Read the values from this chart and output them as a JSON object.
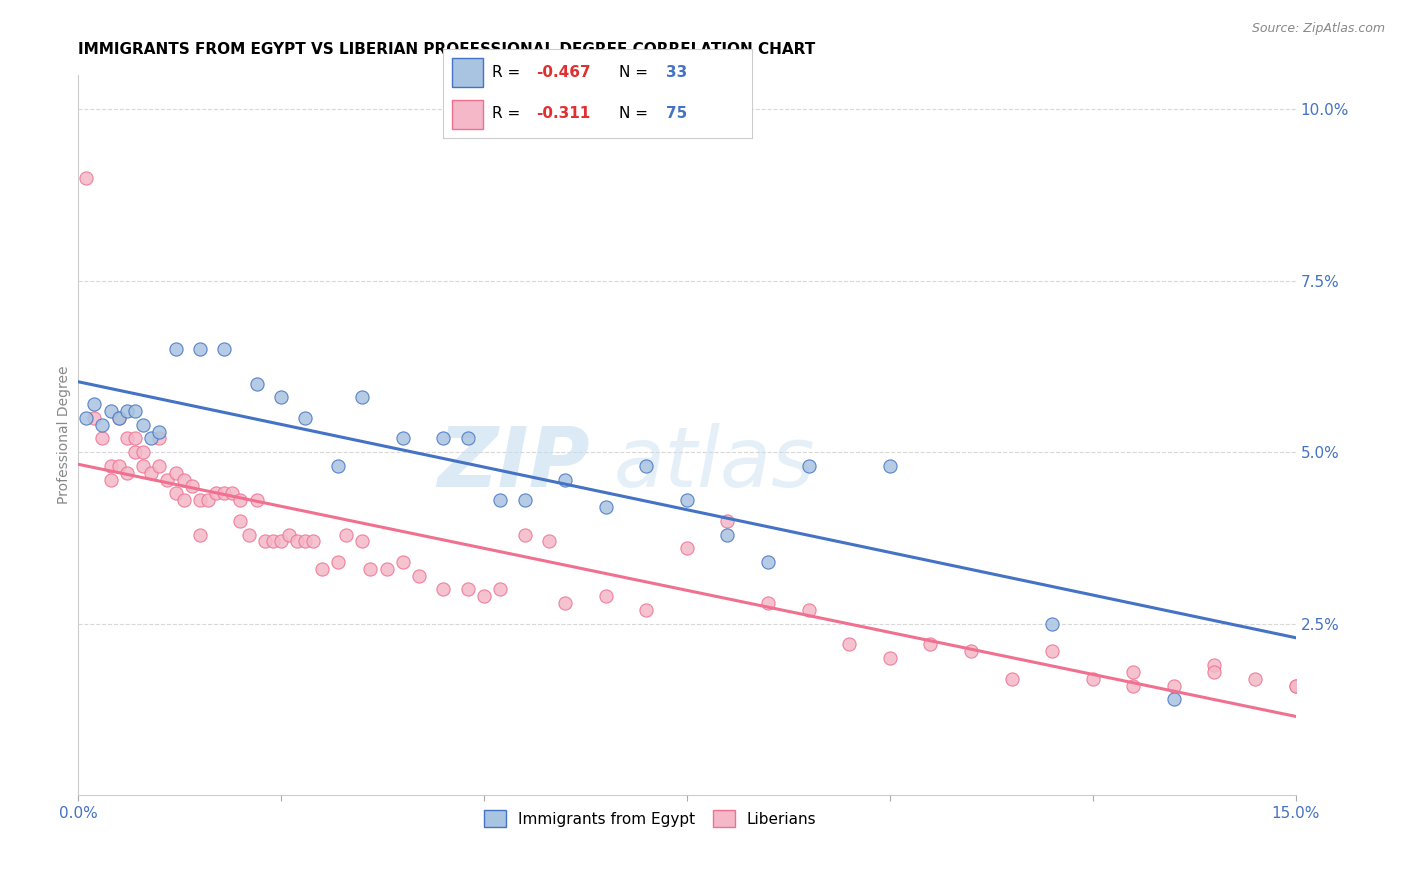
{
  "title": "IMMIGRANTS FROM EGYPT VS LIBERIAN PROFESSIONAL DEGREE CORRELATION CHART",
  "source": "Source: ZipAtlas.com",
  "ylabel": "Professional Degree",
  "x_min": 0.0,
  "x_max": 0.15,
  "y_min": 0.0,
  "y_max": 0.105,
  "x_ticks_labeled": [
    0.0,
    0.15
  ],
  "x_tick_labels_labeled": [
    "0.0%",
    "15.0%"
  ],
  "x_ticks_minor": [
    0.025,
    0.05,
    0.075,
    0.1,
    0.125
  ],
  "y_ticks_right": [
    0.025,
    0.05,
    0.075,
    0.1
  ],
  "y_tick_labels_right": [
    "2.5%",
    "5.0%",
    "7.5%",
    "10.0%"
  ],
  "legend_label_egypt": "Immigrants from Egypt",
  "legend_label_liberia": "Liberians",
  "r_egypt": -0.467,
  "n_egypt": 33,
  "r_liberia": -0.311,
  "n_liberia": 75,
  "color_egypt": "#a8c4e0",
  "color_liberia": "#f4b8c8",
  "color_egypt_line": "#4472c4",
  "color_liberia_line": "#f07090",
  "color_r": "#e03030",
  "color_n": "#4472c4",
  "watermark_zip": "ZIP",
  "watermark_atlas": "atlas",
  "egypt_x": [
    0.001,
    0.002,
    0.003,
    0.004,
    0.005,
    0.006,
    0.007,
    0.008,
    0.009,
    0.01,
    0.012,
    0.015,
    0.018,
    0.022,
    0.025,
    0.028,
    0.032,
    0.035,
    0.04,
    0.045,
    0.048,
    0.052,
    0.055,
    0.06,
    0.065,
    0.07,
    0.075,
    0.08,
    0.085,
    0.09,
    0.1,
    0.12,
    0.135
  ],
  "egypt_y": [
    0.055,
    0.057,
    0.054,
    0.056,
    0.055,
    0.056,
    0.056,
    0.054,
    0.052,
    0.053,
    0.065,
    0.065,
    0.065,
    0.06,
    0.058,
    0.055,
    0.048,
    0.058,
    0.052,
    0.052,
    0.052,
    0.043,
    0.043,
    0.046,
    0.042,
    0.048,
    0.043,
    0.038,
    0.034,
    0.048,
    0.048,
    0.025,
    0.014
  ],
  "liberia_x": [
    0.001,
    0.002,
    0.003,
    0.004,
    0.004,
    0.005,
    0.005,
    0.006,
    0.006,
    0.007,
    0.007,
    0.008,
    0.008,
    0.009,
    0.01,
    0.01,
    0.011,
    0.012,
    0.012,
    0.013,
    0.013,
    0.014,
    0.015,
    0.015,
    0.016,
    0.017,
    0.018,
    0.019,
    0.02,
    0.02,
    0.021,
    0.022,
    0.023,
    0.024,
    0.025,
    0.026,
    0.027,
    0.028,
    0.029,
    0.03,
    0.032,
    0.033,
    0.035,
    0.036,
    0.038,
    0.04,
    0.042,
    0.045,
    0.048,
    0.05,
    0.052,
    0.055,
    0.058,
    0.06,
    0.065,
    0.07,
    0.075,
    0.08,
    0.085,
    0.09,
    0.095,
    0.1,
    0.105,
    0.11,
    0.115,
    0.12,
    0.125,
    0.13,
    0.135,
    0.14,
    0.145,
    0.15,
    0.15,
    0.14,
    0.13
  ],
  "liberia_y": [
    0.09,
    0.055,
    0.052,
    0.048,
    0.046,
    0.055,
    0.048,
    0.052,
    0.047,
    0.052,
    0.05,
    0.05,
    0.048,
    0.047,
    0.052,
    0.048,
    0.046,
    0.044,
    0.047,
    0.043,
    0.046,
    0.045,
    0.043,
    0.038,
    0.043,
    0.044,
    0.044,
    0.044,
    0.04,
    0.043,
    0.038,
    0.043,
    0.037,
    0.037,
    0.037,
    0.038,
    0.037,
    0.037,
    0.037,
    0.033,
    0.034,
    0.038,
    0.037,
    0.033,
    0.033,
    0.034,
    0.032,
    0.03,
    0.03,
    0.029,
    0.03,
    0.038,
    0.037,
    0.028,
    0.029,
    0.027,
    0.036,
    0.04,
    0.028,
    0.027,
    0.022,
    0.02,
    0.022,
    0.021,
    0.017,
    0.021,
    0.017,
    0.018,
    0.016,
    0.019,
    0.017,
    0.016,
    0.016,
    0.018,
    0.016
  ],
  "background_color": "#ffffff",
  "grid_color": "#d8d8d8",
  "title_fontsize": 11,
  "axis_label_fontsize": 10,
  "tick_fontsize": 11
}
